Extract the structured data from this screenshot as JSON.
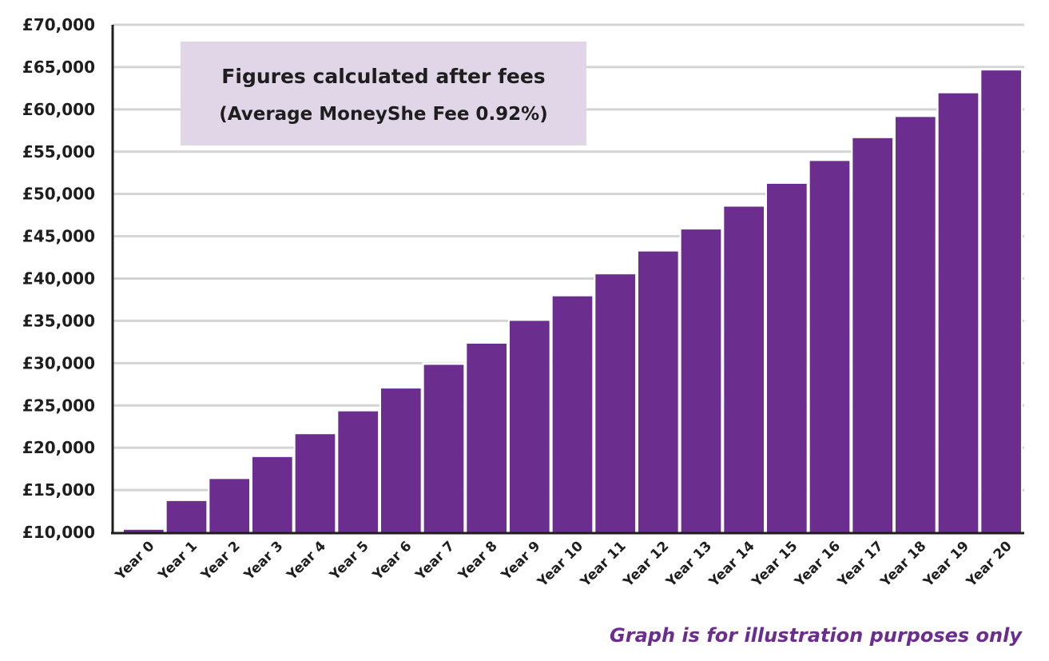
{
  "chart_data": {
    "type": "bar",
    "categories": [
      "Year 0",
      "Year 1",
      "Year 2",
      "Year 3",
      "Year 4",
      "Year 5",
      "Year 6",
      "Year 7",
      "Year 8",
      "Year 9",
      "Year 10",
      "Year 11",
      "Year 12",
      "Year 13",
      "Year 14",
      "Year 15",
      "Year 16",
      "Year 17",
      "Year 18",
      "Year 19",
      "Year 20"
    ],
    "values": [
      10300,
      13700,
      16300,
      18900,
      21600,
      24300,
      27000,
      29800,
      32300,
      35000,
      37900,
      40500,
      43200,
      45800,
      48500,
      51200,
      53900,
      56600,
      59100,
      61900,
      64600
    ],
    "ylim": [
      10000,
      70000
    ],
    "yticks": [
      10000,
      15000,
      20000,
      25000,
      30000,
      35000,
      40000,
      45000,
      50000,
      55000,
      60000,
      65000,
      70000
    ],
    "ytick_labels": [
      "£10,000",
      "£15,000",
      "£20,000",
      "£25,000",
      "£30,000",
      "£35,000",
      "£40,000",
      "£45,000",
      "£50,000",
      "£55,000",
      "£60,000",
      "£65,000",
      "£70,000"
    ],
    "grid": true,
    "bar_color": "#6b2d8e",
    "grid_color": "#d4d4d4",
    "annotation": {
      "title": "Figures calculated after fees",
      "subtitle": "(Average MoneyShe Fee 0.92%)",
      "background": "#e1d5e8"
    },
    "footnote": "Graph is for illustration purposes only",
    "footnote_color": "#6b2d8e"
  }
}
